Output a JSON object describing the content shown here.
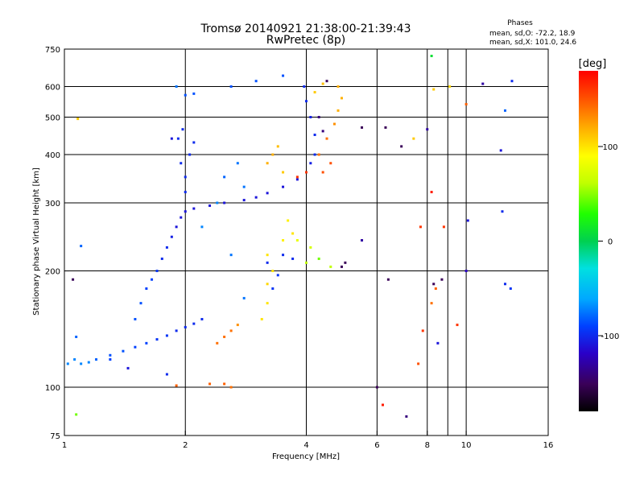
{
  "chart_data": {
    "type": "scatter",
    "title": "Tromsø 20140921 21:38:00-21:39:43",
    "subtitle": "RwPretec (8p)",
    "xlabel": "Frequency [MHz]",
    "ylabel": "Stationary phase Virtual Height [km]",
    "x_scale": "log",
    "y_scale": "log",
    "xlim": [
      1,
      16
    ],
    "ylim": [
      75,
      750
    ],
    "x_ticks": [
      1,
      2,
      4,
      6,
      8,
      10,
      16
    ],
    "x_gridlines": [
      2,
      4,
      6,
      8,
      10
    ],
    "x_minor_gridlines": [
      9
    ],
    "y_ticks": [
      75,
      100,
      200,
      300,
      400,
      500,
      600,
      750
    ],
    "y_gridlines": [
      100,
      200,
      300,
      400,
      500,
      600
    ],
    "grid": true,
    "annotation": {
      "title": "Phases",
      "line1": "mean, sd,O: -72.2, 18.9",
      "line2": "mean, sd,X: 101.0, 24.6"
    },
    "colorbar": {
      "label": "[deg]",
      "range": [
        -180,
        180
      ],
      "ticks": [
        100,
        0,
        -100
      ],
      "colors": [
        "#000000",
        "#3a0058",
        "#2a00c8",
        "#0040ff",
        "#00a8ff",
        "#00e0e0",
        "#00d050",
        "#20ff00",
        "#c0ff00",
        "#ffff00",
        "#ffb000",
        "#ff5000",
        "#ff0000"
      ]
    },
    "series": [
      {
        "points": [
          {
            "f": 1.02,
            "h": 115,
            "p": -70
          },
          {
            "f": 1.06,
            "h": 118,
            "p": -70
          },
          {
            "f": 1.1,
            "h": 115,
            "p": -70
          },
          {
            "f": 1.15,
            "h": 116,
            "p": -70
          },
          {
            "f": 1.2,
            "h": 118,
            "p": -80
          },
          {
            "f": 1.3,
            "h": 121,
            "p": -85
          },
          {
            "f": 1.4,
            "h": 124,
            "p": -85
          },
          {
            "f": 1.5,
            "h": 127,
            "p": -90
          },
          {
            "f": 1.6,
            "h": 130,
            "p": -90
          },
          {
            "f": 1.7,
            "h": 133,
            "p": -95
          },
          {
            "f": 1.8,
            "h": 136,
            "p": -95
          },
          {
            "f": 1.9,
            "h": 140,
            "p": -100
          },
          {
            "f": 2.0,
            "h": 143,
            "p": -100
          },
          {
            "f": 2.1,
            "h": 146,
            "p": -100
          },
          {
            "f": 2.2,
            "h": 150,
            "p": -100
          },
          {
            "f": 1.5,
            "h": 150,
            "p": -85
          },
          {
            "f": 1.55,
            "h": 165,
            "p": -85
          },
          {
            "f": 1.6,
            "h": 180,
            "p": -90
          },
          {
            "f": 1.65,
            "h": 190,
            "p": -90
          },
          {
            "f": 1.7,
            "h": 200,
            "p": -95
          },
          {
            "f": 1.75,
            "h": 215,
            "p": -100
          },
          {
            "f": 1.8,
            "h": 230,
            "p": -100
          },
          {
            "f": 1.85,
            "h": 245,
            "p": -105
          },
          {
            "f": 1.9,
            "h": 260,
            "p": -110
          },
          {
            "f": 1.95,
            "h": 275,
            "p": -110
          },
          {
            "f": 2.0,
            "h": 285,
            "p": -110
          },
          {
            "f": 2.1,
            "h": 290,
            "p": -110
          },
          {
            "f": 2.3,
            "h": 295,
            "p": -110
          },
          {
            "f": 2.5,
            "h": 300,
            "p": -110
          },
          {
            "f": 2.8,
            "h": 305,
            "p": -110
          },
          {
            "f": 3.0,
            "h": 310,
            "p": -110
          },
          {
            "f": 3.2,
            "h": 318,
            "p": -110
          },
          {
            "f": 3.5,
            "h": 330,
            "p": -110
          },
          {
            "f": 3.8,
            "h": 345,
            "p": -110
          },
          {
            "f": 4.0,
            "h": 360,
            "p": -110
          },
          {
            "f": 4.1,
            "h": 380,
            "p": -105
          },
          {
            "f": 4.2,
            "h": 400,
            "p": -100
          },
          {
            "f": 4.2,
            "h": 450,
            "p": -100
          },
          {
            "f": 4.1,
            "h": 500,
            "p": -105
          },
          {
            "f": 4.0,
            "h": 550,
            "p": -100
          },
          {
            "f": 3.95,
            "h": 600,
            "p": -100
          },
          {
            "f": 2.0,
            "h": 320,
            "p": -100
          },
          {
            "f": 2.0,
            "h": 350,
            "p": -100
          },
          {
            "f": 2.05,
            "h": 400,
            "p": -100
          },
          {
            "f": 2.1,
            "h": 430,
            "p": -100
          },
          {
            "f": 1.95,
            "h": 380,
            "p": -100
          },
          {
            "f": 2.0,
            "h": 570,
            "p": -85
          },
          {
            "f": 2.1,
            "h": 575,
            "p": -85
          },
          {
            "f": 2.6,
            "h": 600,
            "p": -85
          },
          {
            "f": 3.0,
            "h": 620,
            "p": -85
          },
          {
            "f": 3.5,
            "h": 640,
            "p": -85
          },
          {
            "f": 3.3,
            "h": 180,
            "p": -95
          },
          {
            "f": 3.4,
            "h": 195,
            "p": -95
          },
          {
            "f": 3.2,
            "h": 210,
            "p": -100
          },
          {
            "f": 3.5,
            "h": 220,
            "p": -100
          },
          {
            "f": 3.7,
            "h": 215,
            "p": -100
          },
          {
            "f": 2.5,
            "h": 350,
            "p": -80
          },
          {
            "f": 2.7,
            "h": 380,
            "p": -75
          },
          {
            "f": 2.8,
            "h": 330,
            "p": -75
          },
          {
            "f": 2.4,
            "h": 300,
            "p": -70
          },
          {
            "f": 2.2,
            "h": 260,
            "p": -70
          },
          {
            "f": 2.6,
            "h": 220,
            "p": -75
          },
          {
            "f": 2.8,
            "h": 170,
            "p": -75
          },
          {
            "f": 2.5,
            "h": 135,
            "p": 140
          },
          {
            "f": 2.6,
            "h": 140,
            "p": 140
          },
          {
            "f": 2.7,
            "h": 145,
            "p": 130
          },
          {
            "f": 2.4,
            "h": 130,
            "p": 140
          },
          {
            "f": 2.3,
            "h": 102,
            "p": 145
          },
          {
            "f": 2.5,
            "h": 102,
            "p": 145
          },
          {
            "f": 2.6,
            "h": 100,
            "p": 140
          },
          {
            "f": 1.9,
            "h": 101,
            "p": 145
          },
          {
            "f": 3.1,
            "h": 150,
            "p": 100
          },
          {
            "f": 3.2,
            "h": 165,
            "p": 100
          },
          {
            "f": 3.2,
            "h": 185,
            "p": 105
          },
          {
            "f": 3.3,
            "h": 200,
            "p": 100
          },
          {
            "f": 3.2,
            "h": 220,
            "p": 100
          },
          {
            "f": 3.5,
            "h": 240,
            "p": 95
          },
          {
            "f": 3.7,
            "h": 250,
            "p": 100
          },
          {
            "f": 3.6,
            "h": 270,
            "p": 95
          },
          {
            "f": 3.2,
            "h": 380,
            "p": 120
          },
          {
            "f": 3.3,
            "h": 400,
            "p": 120
          },
          {
            "f": 3.5,
            "h": 360,
            "p": 110
          },
          {
            "f": 3.4,
            "h": 420,
            "p": 115
          },
          {
            "f": 4.0,
            "h": 210,
            "p": 60
          },
          {
            "f": 4.3,
            "h": 215,
            "p": 45
          },
          {
            "f": 4.6,
            "h": 205,
            "p": 60
          },
          {
            "f": 4.9,
            "h": 205,
            "p": -150
          },
          {
            "f": 3.8,
            "h": 240,
            "p": 80
          },
          {
            "f": 4.1,
            "h": 230,
            "p": 70
          },
          {
            "f": 4.3,
            "h": 400,
            "p": 140
          },
          {
            "f": 4.5,
            "h": 440,
            "p": 140
          },
          {
            "f": 4.7,
            "h": 480,
            "p": 130
          },
          {
            "f": 4.8,
            "h": 520,
            "p": 120
          },
          {
            "f": 4.9,
            "h": 560,
            "p": 120
          },
          {
            "f": 4.8,
            "h": 600,
            "p": 120
          },
          {
            "f": 4.6,
            "h": 380,
            "p": 150
          },
          {
            "f": 4.4,
            "h": 360,
            "p": 150
          },
          {
            "f": 4.0,
            "h": 360,
            "p": 160
          },
          {
            "f": 3.8,
            "h": 350,
            "p": 160
          },
          {
            "f": 4.2,
            "h": 580,
            "p": 110
          },
          {
            "f": 4.4,
            "h": 610,
            "p": 115
          },
          {
            "f": 4.3,
            "h": 500,
            "p": -140
          },
          {
            "f": 4.4,
            "h": 460,
            "p": -140
          },
          {
            "f": 4.5,
            "h": 620,
            "p": -150
          },
          {
            "f": 5.5,
            "h": 470,
            "p": -150
          },
          {
            "f": 6.3,
            "h": 470,
            "p": -150
          },
          {
            "f": 6.9,
            "h": 420,
            "p": -150
          },
          {
            "f": 7.4,
            "h": 440,
            "p": 110
          },
          {
            "f": 5.5,
            "h": 240,
            "p": -130
          },
          {
            "f": 5.0,
            "h": 210,
            "p": -150
          },
          {
            "f": 7.7,
            "h": 260,
            "p": 160
          },
          {
            "f": 8.2,
            "h": 320,
            "p": 170
          },
          {
            "f": 8.0,
            "h": 465,
            "p": -130
          },
          {
            "f": 8.3,
            "h": 590,
            "p": 110
          },
          {
            "f": 8.2,
            "h": 720,
            "p": 10
          },
          {
            "f": 9.1,
            "h": 600,
            "p": 105
          },
          {
            "f": 10.0,
            "h": 540,
            "p": 145
          },
          {
            "f": 11.0,
            "h": 610,
            "p": -130
          },
          {
            "f": 12.5,
            "h": 520,
            "p": -80
          },
          {
            "f": 13.0,
            "h": 620,
            "p": -100
          },
          {
            "f": 12.2,
            "h": 410,
            "p": -110
          },
          {
            "f": 10.1,
            "h": 270,
            "p": -110
          },
          {
            "f": 12.3,
            "h": 285,
            "p": -100
          },
          {
            "f": 8.8,
            "h": 260,
            "p": 160
          },
          {
            "f": 8.3,
            "h": 185,
            "p": -150
          },
          {
            "f": 8.7,
            "h": 190,
            "p": -150
          },
          {
            "f": 9.5,
            "h": 145,
            "p": 160
          },
          {
            "f": 8.5,
            "h": 130,
            "p": -110
          },
          {
            "f": 8.2,
            "h": 165,
            "p": 140
          },
          {
            "f": 6.0,
            "h": 100,
            "p": -150
          },
          {
            "f": 6.2,
            "h": 90,
            "p": 170
          },
          {
            "f": 7.1,
            "h": 84,
            "p": -140
          },
          {
            "f": 7.6,
            "h": 115,
            "p": 150
          },
          {
            "f": 6.4,
            "h": 190,
            "p": -150
          },
          {
            "f": 7.8,
            "h": 140,
            "p": 160
          },
          {
            "f": 8.4,
            "h": 180,
            "p": 145
          },
          {
            "f": 10.0,
            "h": 200,
            "p": -120
          },
          {
            "f": 12.5,
            "h": 185,
            "p": -100
          },
          {
            "f": 12.9,
            "h": 180,
            "p": -95
          },
          {
            "f": 1.05,
            "h": 190,
            "p": -150
          },
          {
            "f": 1.07,
            "h": 135,
            "p": -80
          },
          {
            "f": 1.1,
            "h": 232,
            "p": -80
          },
          {
            "f": 1.08,
            "h": 495,
            "p": 110
          },
          {
            "f": 1.07,
            "h": 85,
            "p": 45
          },
          {
            "f": 1.3,
            "h": 118,
            "p": -90
          },
          {
            "f": 1.44,
            "h": 112,
            "p": -110
          },
          {
            "f": 1.8,
            "h": 108,
            "p": -100
          },
          {
            "f": 1.85,
            "h": 440,
            "p": -110
          },
          {
            "f": 1.92,
            "h": 440,
            "p": -100
          },
          {
            "f": 1.97,
            "h": 465,
            "p": -100
          },
          {
            "f": 1.9,
            "h": 600,
            "p": -75
          }
        ]
      }
    ]
  }
}
